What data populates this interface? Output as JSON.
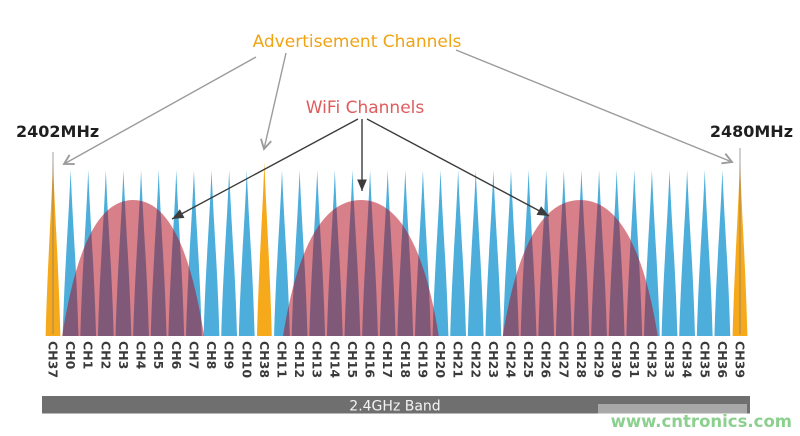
{
  "diagram": {
    "advertisement_label": "Advertisement Channels",
    "wifi_label": "WiFi Channels",
    "freq_start": "2402MHz",
    "freq_end": "2480MHz",
    "band_label": "2.4GHz Band",
    "watermark": "www.cntronics.com"
  },
  "colors": {
    "ble_data_channel": "#4DAEDB",
    "ble_advertising_channel": "#F7A91C",
    "wifi_overlay": "rgba(178,12,28,0.52)",
    "advertisement_text": "#F0A413",
    "wifi_text": "#E05C5C",
    "freq_text": "#1F1F1F",
    "channel_text": "#3A3A3A",
    "band_bar": "#6F6F6F",
    "band_text": "#F4F4F4",
    "watermark_box": "#A8A8A8",
    "watermark_text": "rgba(95,190,100,0.72)",
    "arrow_gray": "#9B9B9B",
    "arrow_dark": "#3C3C3C",
    "marker_line": "rgba(125,125,125,0.6)"
  },
  "channels": [
    {
      "id": "CH37",
      "type": "advertising"
    },
    {
      "id": "CH0",
      "type": "data"
    },
    {
      "id": "CH1",
      "type": "data"
    },
    {
      "id": "CH2",
      "type": "data"
    },
    {
      "id": "CH3",
      "type": "data"
    },
    {
      "id": "CH4",
      "type": "data"
    },
    {
      "id": "CH5",
      "type": "data"
    },
    {
      "id": "CH6",
      "type": "data"
    },
    {
      "id": "CH7",
      "type": "data"
    },
    {
      "id": "CH8",
      "type": "data"
    },
    {
      "id": "CH9",
      "type": "data"
    },
    {
      "id": "CH10",
      "type": "data"
    },
    {
      "id": "CH38",
      "type": "advertising"
    },
    {
      "id": "CH11",
      "type": "data"
    },
    {
      "id": "CH12",
      "type": "data"
    },
    {
      "id": "CH13",
      "type": "data"
    },
    {
      "id": "CH14",
      "type": "data"
    },
    {
      "id": "CH15",
      "type": "data"
    },
    {
      "id": "CH16",
      "type": "data"
    },
    {
      "id": "CH17",
      "type": "data"
    },
    {
      "id": "CH18",
      "type": "data"
    },
    {
      "id": "CH19",
      "type": "data"
    },
    {
      "id": "CH20",
      "type": "data"
    },
    {
      "id": "CH21",
      "type": "data"
    },
    {
      "id": "CH22",
      "type": "data"
    },
    {
      "id": "CH23",
      "type": "data"
    },
    {
      "id": "CH24",
      "type": "data"
    },
    {
      "id": "CH25",
      "type": "data"
    },
    {
      "id": "CH26",
      "type": "data"
    },
    {
      "id": "CH27",
      "type": "data"
    },
    {
      "id": "CH28",
      "type": "data"
    },
    {
      "id": "CH29",
      "type": "data"
    },
    {
      "id": "CH30",
      "type": "data"
    },
    {
      "id": "CH31",
      "type": "data"
    },
    {
      "id": "CH32",
      "type": "data"
    },
    {
      "id": "CH33",
      "type": "data"
    },
    {
      "id": "CH34",
      "type": "data"
    },
    {
      "id": "CH35",
      "type": "data"
    },
    {
      "id": "CH36",
      "type": "data"
    },
    {
      "id": "CH39",
      "type": "advertising"
    }
  ],
  "wifi_channels": [
    {
      "covers_from": "CH0",
      "covers_to": "CH8",
      "center_index": 4.55,
      "half_span": 4.03
    },
    {
      "covers_from": "CH11",
      "covers_to": "CH20",
      "center_index": 17.48,
      "half_span": 4.42
    },
    {
      "covers_from": "CH24",
      "covers_to": "CH32",
      "center_index": 29.93,
      "half_span": 4.4
    }
  ]
}
